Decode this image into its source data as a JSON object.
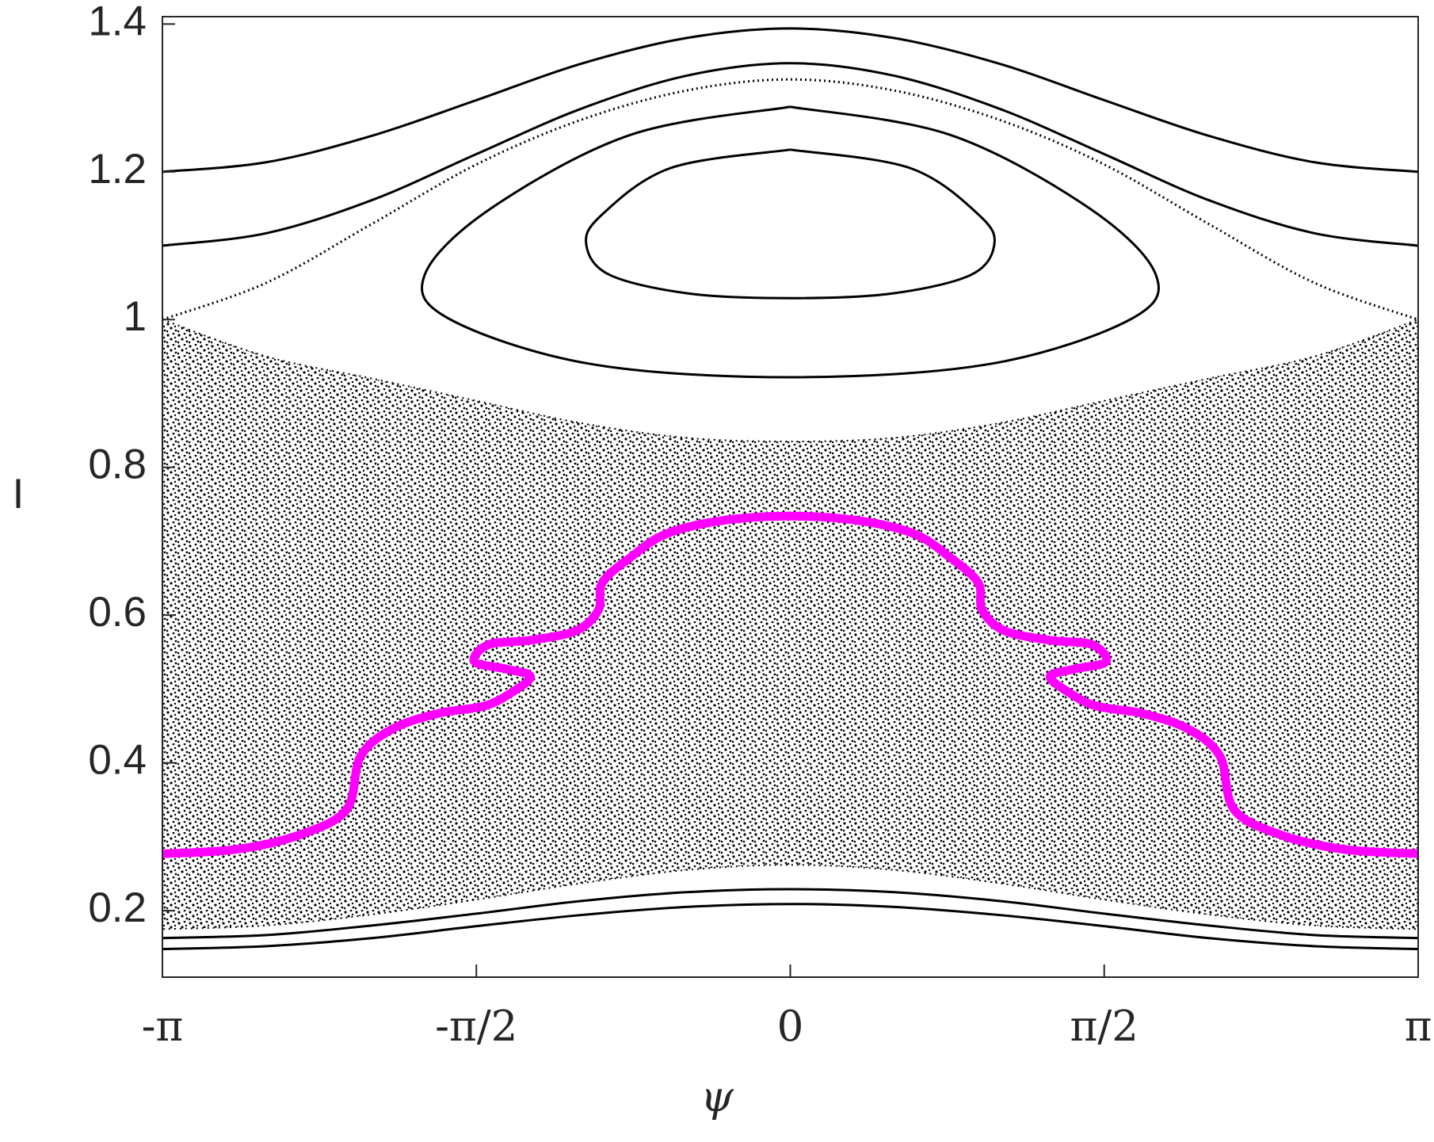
{
  "chart_data": {
    "type": "line",
    "x_label": "ψ",
    "y_label": "I",
    "xlim": [
      -3.1416,
      3.1416
    ],
    "ylim": [
      0.11,
      1.41
    ],
    "xticks": [
      {
        "value": -3.1416,
        "label": "-π"
      },
      {
        "value": -1.5708,
        "label": "-π/2"
      },
      0,
      {
        "value": 1.5708,
        "label": "π/2"
      },
      {
        "value": 3.1416,
        "label": "π"
      }
    ],
    "yticks": [
      0.2,
      0.4,
      0.6,
      0.8,
      1,
      1.2,
      1.4
    ],
    "grid": false,
    "series": [
      {
        "style": "area",
        "color": "#000000",
        "x": [
          -3.1416,
          -2.62,
          -2.09,
          -1.57,
          -1.05,
          -0.52,
          0,
          0.52,
          1.05,
          1.57,
          2.09,
          2.62,
          3.1416
        ],
        "values": [
          1.0,
          0.95,
          0.92,
          0.89,
          0.86,
          0.84,
          0.835,
          0.84,
          0.86,
          0.89,
          0.92,
          0.95,
          1.0
        ],
        "lower": [
          0.175,
          0.18,
          0.195,
          0.215,
          0.237,
          0.255,
          0.262,
          0.255,
          0.237,
          0.215,
          0.195,
          0.18,
          0.175
        ]
      },
      {
        "style": "dotted",
        "color": "#000000",
        "x": [
          -3.1416,
          -2.62,
          -2.09,
          -1.57,
          -1.05,
          -0.52,
          0,
          0.52,
          1.05,
          1.57,
          2.09,
          2.62,
          3.1416
        ],
        "values": [
          1.0,
          1.05,
          1.13,
          1.21,
          1.27,
          1.31,
          1.325,
          1.31,
          1.27,
          1.21,
          1.13,
          1.05,
          1.0
        ]
      },
      {
        "style": "solid",
        "color": "#000000",
        "x": [
          -3.1416,
          -2.62,
          -2.09,
          -1.57,
          -1.05,
          -0.52,
          0,
          0.52,
          1.05,
          1.57,
          2.09,
          2.62,
          3.1416
        ],
        "values": [
          1.2,
          1.213,
          1.249,
          1.297,
          1.346,
          1.381,
          1.394,
          1.381,
          1.346,
          1.297,
          1.249,
          1.213,
          1.2
        ]
      },
      {
        "style": "solid",
        "color": "#000000",
        "x": [
          -3.1416,
          -2.62,
          -2.09,
          -1.57,
          -1.05,
          -0.52,
          0,
          0.52,
          1.05,
          1.57,
          2.09,
          2.62,
          3.1416
        ],
        "values": [
          1.1,
          1.117,
          1.162,
          1.224,
          1.285,
          1.33,
          1.347,
          1.33,
          1.285,
          1.224,
          1.162,
          1.117,
          1.1
        ]
      },
      {
        "style": "solid",
        "color": "#000000",
        "x": [
          0,
          0.8,
          1.5,
          1.83,
          1.7,
          1.0,
          0,
          -1.0,
          -1.7,
          -1.83,
          -1.5,
          -0.8,
          0
        ],
        "values": [
          1.288,
          1.25,
          1.15,
          1.06,
          1.0,
          0.94,
          0.922,
          0.94,
          1.0,
          1.06,
          1.15,
          1.25,
          1.288
        ]
      },
      {
        "style": "solid",
        "color": "#000000",
        "x": [
          0,
          0.6,
          0.95,
          1.02,
          0.9,
          0.5,
          0,
          -0.5,
          -0.9,
          -1.02,
          -0.95,
          -0.6,
          0
        ],
        "values": [
          1.23,
          1.205,
          1.14,
          1.1,
          1.06,
          1.035,
          1.029,
          1.035,
          1.06,
          1.1,
          1.14,
          1.205,
          1.23
        ]
      },
      {
        "style": "solid",
        "color": "#000000",
        "x": [
          -3.1416,
          -2.62,
          -2.09,
          -1.57,
          -1.05,
          -0.52,
          0,
          0.52,
          1.05,
          1.57,
          2.09,
          2.62,
          3.1416
        ],
        "values": [
          0.163,
          0.167,
          0.18,
          0.196,
          0.213,
          0.225,
          0.229,
          0.225,
          0.213,
          0.196,
          0.18,
          0.167,
          0.163
        ]
      },
      {
        "style": "solid",
        "color": "#000000",
        "x": [
          -3.1416,
          -2.62,
          -2.09,
          -1.57,
          -1.05,
          -0.52,
          0,
          0.52,
          1.05,
          1.57,
          2.09,
          2.62,
          3.1416
        ],
        "values": [
          0.148,
          0.152,
          0.163,
          0.179,
          0.194,
          0.205,
          0.209,
          0.205,
          0.194,
          0.179,
          0.163,
          0.152,
          0.148
        ]
      },
      {
        "style": "thick",
        "color": "#ff00ff",
        "x": [
          -3.1416,
          -2.77,
          -2.45,
          -2.22,
          -2.15,
          -1.99,
          -1.76,
          -1.53,
          -1.39,
          -1.3,
          -1.42,
          -1.58,
          -1.51,
          -1.3,
          -1.07,
          -0.96,
          -0.94,
          -0.8,
          -0.62,
          -0.34,
          0,
          0.34,
          0.62,
          0.8,
          0.94,
          0.96,
          1.07,
          1.3,
          1.51,
          1.58,
          1.42,
          1.3,
          1.39,
          1.53,
          1.76,
          1.99,
          2.15,
          2.22,
          2.45,
          2.77,
          3.1416
        ],
        "values": [
          0.277,
          0.283,
          0.303,
          0.337,
          0.409,
          0.446,
          0.467,
          0.477,
          0.496,
          0.517,
          0.527,
          0.537,
          0.56,
          0.566,
          0.579,
          0.607,
          0.644,
          0.678,
          0.71,
          0.728,
          0.734,
          0.728,
          0.71,
          0.678,
          0.644,
          0.607,
          0.579,
          0.566,
          0.56,
          0.537,
          0.527,
          0.517,
          0.496,
          0.477,
          0.467,
          0.446,
          0.409,
          0.337,
          0.303,
          0.283,
          0.277
        ]
      }
    ]
  }
}
